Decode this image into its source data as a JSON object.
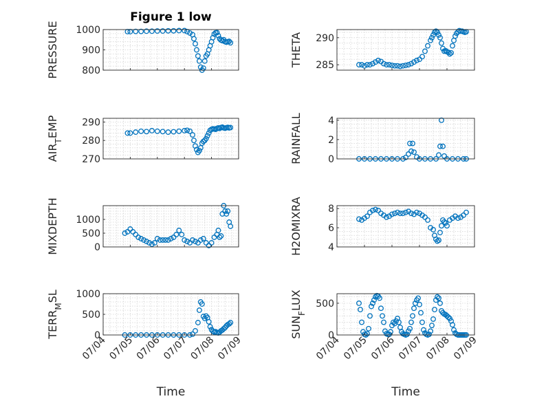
{
  "figure": {
    "title": "Figure 1 low",
    "marker_color": "#0072BD",
    "axis_color": "#262626",
    "grid_color": "#d4d4d4"
  },
  "chart_data": [
    {
      "type": "scatter",
      "ylabel": "PRESSURE",
      "xlabel": "",
      "title": "Figure 1 low",
      "xlim": [
        "07/04",
        "07/09"
      ],
      "ylim": [
        800,
        1000
      ],
      "yticks": [
        800,
        900,
        1000
      ],
      "grid": true,
      "xticklabels": [],
      "x": [
        0.9,
        1.0,
        1.2,
        1.4,
        1.6,
        1.8,
        2.0,
        2.2,
        2.4,
        2.6,
        2.8,
        3.0,
        3.1,
        3.2,
        3.3,
        3.35,
        3.4,
        3.45,
        3.5,
        3.55,
        3.6,
        3.65,
        3.7,
        3.75,
        3.8,
        3.85,
        3.9,
        3.95,
        4.0,
        4.05,
        4.1,
        4.15,
        4.2,
        4.25,
        4.3,
        4.35,
        4.4,
        4.45,
        4.5,
        4.55,
        4.6,
        4.65,
        4.7
      ],
      "y": [
        990,
        990,
        991,
        991,
        992,
        992,
        993,
        993,
        994,
        994,
        995,
        995,
        990,
        983,
        975,
        955,
        930,
        900,
        870,
        845,
        815,
        800,
        810,
        845,
        870,
        880,
        900,
        920,
        940,
        960,
        978,
        984,
        985,
        970,
        955,
        948,
        945,
        950,
        940,
        938,
        940,
        942,
        935
      ]
    },
    {
      "type": "scatter",
      "ylabel": "THETA",
      "xlabel": "",
      "xlim": [
        "07/04",
        "07/09"
      ],
      "ylim": [
        284,
        291.5
      ],
      "yticks": [
        285,
        290
      ],
      "grid": true,
      "xticklabels": [],
      "x": [
        0.8,
        0.9,
        1.0,
        1.1,
        1.2,
        1.3,
        1.4,
        1.5,
        1.6,
        1.7,
        1.8,
        1.9,
        2.0,
        2.1,
        2.2,
        2.3,
        2.4,
        2.5,
        2.6,
        2.7,
        2.8,
        2.9,
        3.0,
        3.1,
        3.2,
        3.3,
        3.4,
        3.45,
        3.5,
        3.55,
        3.6,
        3.65,
        3.7,
        3.75,
        3.8,
        3.85,
        3.9,
        3.95,
        4.0,
        4.05,
        4.1,
        4.15,
        4.2,
        4.25,
        4.3,
        4.35,
        4.4,
        4.45,
        4.5,
        4.55,
        4.6,
        4.65,
        4.7
      ],
      "y": [
        285,
        285,
        284.8,
        285,
        285,
        285.2,
        285.5,
        285.8,
        285.6,
        285.2,
        285,
        285,
        284.9,
        284.8,
        284.8,
        284.7,
        284.8,
        284.9,
        285,
        285.2,
        285.5,
        285.8,
        286,
        286.5,
        287.5,
        288.5,
        289.5,
        290,
        290.5,
        291,
        291.2,
        291,
        290.5,
        290,
        289,
        288,
        287.5,
        287.6,
        287.4,
        287.3,
        287,
        287.2,
        288.5,
        289.5,
        290.3,
        290.8,
        291.1,
        291.3,
        291.2,
        291.2,
        291.1,
        291.0,
        291.1
      ]
    },
    {
      "type": "scatter",
      "ylabel": "AIR_TEMP",
      "xlabel": "",
      "xlim": [
        "07/04",
        "07/09"
      ],
      "ylim": [
        270,
        292
      ],
      "yticks": [
        270,
        280,
        290
      ],
      "grid": true,
      "xticklabels": [],
      "x": [
        0.9,
        1.0,
        1.2,
        1.4,
        1.6,
        1.8,
        2.0,
        2.2,
        2.4,
        2.6,
        2.8,
        3.0,
        3.1,
        3.2,
        3.3,
        3.35,
        3.4,
        3.45,
        3.5,
        3.55,
        3.6,
        3.65,
        3.7,
        3.75,
        3.8,
        3.85,
        3.9,
        3.95,
        4.0,
        4.05,
        4.1,
        4.15,
        4.2,
        4.25,
        4.3,
        4.35,
        4.4,
        4.45,
        4.5,
        4.55,
        4.6,
        4.65,
        4.7
      ],
      "y": [
        284,
        284,
        284.5,
        285,
        284.8,
        285.3,
        285,
        284.8,
        284.5,
        284.7,
        285,
        285.3,
        285.5,
        285,
        283,
        280,
        277,
        275,
        273.5,
        274.5,
        276,
        278.5,
        279.5,
        280,
        281,
        282.5,
        284,
        285.5,
        286,
        286.3,
        286.2,
        286,
        286.5,
        286.8,
        286.5,
        287,
        287.2,
        286.8,
        286.6,
        286.9,
        287.1,
        286.8,
        287
      ]
    },
    {
      "type": "scatter",
      "ylabel": "RAINFALL",
      "xlabel": "",
      "xlim": [
        "07/04",
        "07/09"
      ],
      "ylim": [
        0,
        4.2
      ],
      "yticks": [
        0,
        2,
        4
      ],
      "grid": true,
      "xticklabels": [],
      "x": [
        0.8,
        1.0,
        1.2,
        1.4,
        1.6,
        1.8,
        2.0,
        2.2,
        2.4,
        2.5,
        2.6,
        2.65,
        2.7,
        2.75,
        2.8,
        2.9,
        3.0,
        3.2,
        3.4,
        3.6,
        3.7,
        3.75,
        3.8,
        3.85,
        3.9,
        4.0,
        4.2,
        4.4,
        4.6,
        4.7
      ],
      "y": [
        0,
        0,
        0,
        0,
        0,
        0,
        0,
        0,
        0,
        0.15,
        0.5,
        1.6,
        0.8,
        1.6,
        0.7,
        0.2,
        0,
        0,
        0,
        0,
        0.4,
        1.3,
        4.0,
        1.3,
        0.3,
        0,
        0,
        0,
        0,
        0
      ]
    },
    {
      "type": "scatter",
      "ylabel": "MIXDEPTH",
      "xlabel": "",
      "xlim": [
        "07/04",
        "07/09"
      ],
      "ylim": [
        0,
        1500
      ],
      "yticks": [
        0,
        500,
        1000
      ],
      "grid": true,
      "xticklabels": [],
      "x": [
        0.8,
        0.9,
        1.0,
        1.1,
        1.2,
        1.3,
        1.4,
        1.5,
        1.6,
        1.7,
        1.8,
        1.9,
        2.0,
        2.1,
        2.2,
        2.3,
        2.4,
        2.5,
        2.6,
        2.7,
        2.8,
        2.9,
        3.0,
        3.1,
        3.2,
        3.3,
        3.4,
        3.5,
        3.6,
        3.7,
        3.8,
        3.9,
        4.0,
        4.1,
        4.2,
        4.25,
        4.3,
        4.35,
        4.4,
        4.45,
        4.5,
        4.55,
        4.6,
        4.65,
        4.7
      ],
      "y": [
        500,
        550,
        650,
        550,
        450,
        350,
        300,
        250,
        200,
        150,
        100,
        150,
        300,
        250,
        250,
        250,
        250,
        300,
        350,
        450,
        600,
        450,
        250,
        200,
        150,
        250,
        200,
        150,
        250,
        300,
        150,
        50,
        150,
        350,
        450,
        600,
        350,
        400,
        1200,
        1500,
        1300,
        1200,
        1300,
        900,
        750
      ]
    },
    {
      "type": "scatter",
      "ylabel": "H2OMIXRA",
      "xlabel": "",
      "xlim": [
        "07/04",
        "07/09"
      ],
      "ylim": [
        4,
        8.3
      ],
      "yticks": [
        4,
        6,
        8
      ],
      "grid": true,
      "xticklabels": [],
      "x": [
        0.8,
        0.9,
        1.0,
        1.1,
        1.2,
        1.3,
        1.4,
        1.5,
        1.6,
        1.7,
        1.8,
        1.9,
        2.0,
        2.1,
        2.2,
        2.3,
        2.4,
        2.5,
        2.6,
        2.7,
        2.8,
        2.9,
        3.0,
        3.1,
        3.2,
        3.3,
        3.4,
        3.5,
        3.55,
        3.6,
        3.65,
        3.7,
        3.75,
        3.8,
        3.85,
        3.9,
        3.95,
        4.0,
        4.1,
        4.2,
        4.3,
        4.4,
        4.5,
        4.6,
        4.7
      ],
      "y": [
        6.9,
        6.8,
        7.0,
        7.2,
        7.6,
        7.8,
        7.9,
        7.8,
        7.5,
        7.3,
        7.1,
        7.2,
        7.4,
        7.5,
        7.6,
        7.5,
        7.5,
        7.6,
        7.7,
        7.5,
        7.4,
        7.6,
        7.5,
        7.3,
        7.1,
        6.8,
        6.0,
        5.8,
        5.2,
        4.8,
        4.6,
        4.7,
        5.5,
        6.2,
        6.8,
        6.6,
        6.5,
        6.2,
        6.8,
        7.0,
        7.2,
        7.0,
        7.1,
        7.3,
        7.6
      ]
    },
    {
      "type": "scatter",
      "ylabel": "TERR_MSL",
      "xlabel": "Time",
      "xlim": [
        "07/04",
        "07/09"
      ],
      "ylim": [
        0,
        1000
      ],
      "yticks": [
        0,
        500,
        1000
      ],
      "grid": true,
      "xticklabels": [
        "07/04",
        "07/05",
        "07/06",
        "07/07",
        "07/08",
        "07/09"
      ],
      "x": [
        0.8,
        1.0,
        1.2,
        1.4,
        1.6,
        1.8,
        2.0,
        2.2,
        2.4,
        2.6,
        2.8,
        3.0,
        3.2,
        3.3,
        3.4,
        3.5,
        3.55,
        3.6,
        3.65,
        3.7,
        3.75,
        3.8,
        3.85,
        3.9,
        3.95,
        4.0,
        4.05,
        4.1,
        4.15,
        4.2,
        4.25,
        4.3,
        4.35,
        4.4,
        4.45,
        4.5,
        4.55,
        4.6,
        4.65,
        4.7
      ],
      "y": [
        0,
        0,
        0,
        0,
        0,
        0,
        0,
        0,
        0,
        0,
        0,
        0,
        0,
        20,
        100,
        300,
        600,
        800,
        750,
        450,
        400,
        460,
        420,
        320,
        200,
        130,
        90,
        70,
        80,
        60,
        50,
        70,
        100,
        120,
        150,
        180,
        220,
        250,
        270,
        300
      ]
    },
    {
      "type": "scatter",
      "ylabel": "SUN_FLUX",
      "xlabel": "Time",
      "xlim": [
        "07/04",
        "07/09"
      ],
      "ylim": [
        0,
        650
      ],
      "yticks": [
        0,
        500
      ],
      "grid": true,
      "xticklabels": [
        "07/04",
        "07/05",
        "07/06",
        "07/07",
        "07/08",
        "07/09"
      ],
      "x": [
        0.8,
        0.85,
        0.9,
        0.95,
        1.0,
        1.05,
        1.1,
        1.15,
        1.2,
        1.25,
        1.3,
        1.35,
        1.4,
        1.45,
        1.5,
        1.55,
        1.6,
        1.65,
        1.7,
        1.75,
        1.8,
        1.85,
        1.9,
        1.95,
        2.0,
        2.05,
        2.1,
        2.15,
        2.2,
        2.25,
        2.3,
        2.35,
        2.4,
        2.45,
        2.5,
        2.55,
        2.6,
        2.65,
        2.7,
        2.75,
        2.8,
        2.85,
        2.9,
        2.95,
        3.0,
        3.05,
        3.1,
        3.15,
        3.2,
        3.25,
        3.3,
        3.35,
        3.4,
        3.45,
        3.5,
        3.55,
        3.6,
        3.65,
        3.7,
        3.75,
        3.8,
        3.85,
        3.9,
        3.95,
        4.0,
        4.05,
        4.1,
        4.15,
        4.2,
        4.25,
        4.3,
        4.35,
        4.4,
        4.45,
        4.5,
        4.55,
        4.6,
        4.65,
        4.7
      ],
      "y": [
        500,
        400,
        200,
        50,
        10,
        0,
        20,
        100,
        300,
        450,
        500,
        550,
        600,
        620,
        610,
        580,
        420,
        300,
        200,
        60,
        20,
        10,
        10,
        50,
        150,
        200,
        180,
        220,
        260,
        200,
        120,
        50,
        20,
        10,
        0,
        10,
        60,
        100,
        200,
        300,
        420,
        500,
        550,
        580,
        480,
        350,
        200,
        80,
        30,
        10,
        0,
        10,
        60,
        150,
        250,
        400,
        550,
        600,
        580,
        500,
        380,
        350,
        330,
        320,
        300,
        280,
        260,
        220,
        160,
        80,
        30,
        10,
        0,
        0,
        0,
        0,
        0,
        0,
        0
      ]
    }
  ]
}
